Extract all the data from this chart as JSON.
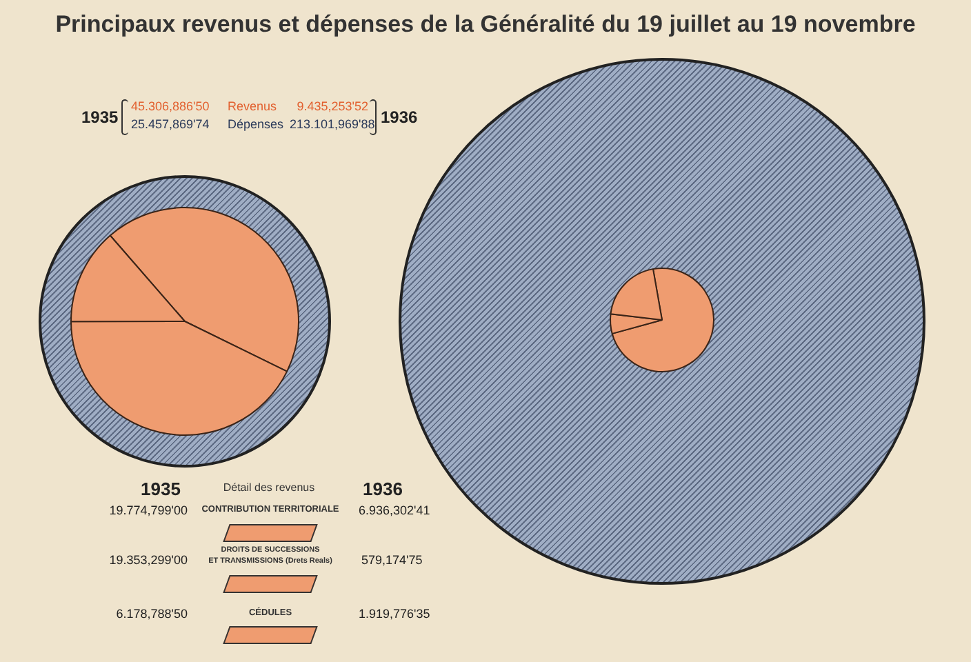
{
  "chart_data": [
    {
      "type": "other",
      "title": "Principaux revenus et dépenses de la Généralité du 19 juillet au 19 novembre",
      "annotations": [
        "1935",
        "45.306,886'50",
        "Revenus",
        "9.435,253'52",
        "1936",
        "25.457,869'74",
        "Dépenses",
        "213.101,969'88"
      ]
    },
    {
      "type": "pie",
      "categories": [
        null,
        null,
        null
      ],
      "values": [
        43.64,
        42.72,
        13.64
      ],
      "colors": [
        "#ef9c70",
        "#ef9c70",
        "#ef9c70"
      ]
    },
    {
      "type": "pie",
      "categories": [
        null,
        null,
        null
      ],
      "values": [
        73.51,
        6.14,
        20.35
      ],
      "colors": [
        "#ef9c70",
        "#ef9c70",
        "#ef9c70"
      ]
    },
    {
      "type": "other",
      "title": "Détail des revenus",
      "annotations": [
        "1935",
        "1936",
        "19.774,799'00",
        "CONTRIBUTION TERRITORIALE",
        "6.936,302'41",
        "19.353,299'00",
        "DROITS DE SUCCESSIONS",
        "ET TRANSMISSIONS (Drets Reals)",
        "579,174'75",
        "6.178,788'50",
        "CÉDULES",
        "1.919,776'35"
      ]
    }
  ]
}
